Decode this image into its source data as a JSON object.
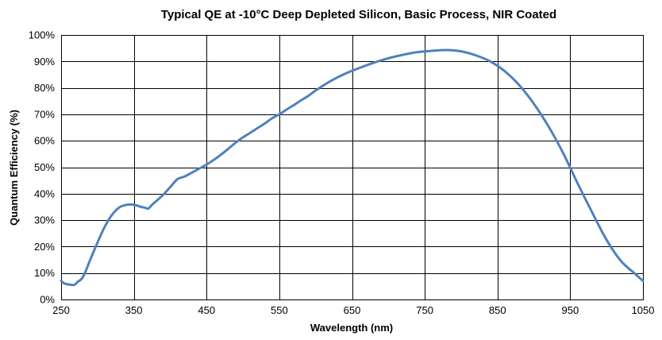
{
  "chart_data": {
    "type": "line",
    "title": "Typical QE at -10°C Deep Depleted Silicon, Basic Process, NIR Coated",
    "xlabel": "Wavelength (nm)",
    "ylabel": "Quantum Efficiency (%)",
    "xlim": [
      250,
      1050
    ],
    "ylim": [
      0,
      100
    ],
    "grid": true,
    "legend": "none",
    "x_ticks": [
      250,
      350,
      450,
      550,
      650,
      750,
      850,
      950,
      1050
    ],
    "x_tick_labels": [
      "250",
      "350",
      "450",
      "550",
      "650",
      "750",
      "850",
      "950",
      "1050"
    ],
    "y_ticks": [
      0,
      10,
      20,
      30,
      40,
      50,
      60,
      70,
      80,
      90,
      100
    ],
    "y_tick_labels": [
      "0%",
      "10%",
      "20%",
      "30%",
      "40%",
      "50%",
      "60%",
      "70%",
      "80%",
      "90%",
      "100%"
    ],
    "series": [
      {
        "name": "QE",
        "color": "#4f81bd",
        "x": [
          250,
          255,
          260,
          268,
          272,
          280,
          290,
          300,
          310,
          320,
          330,
          340,
          350,
          360,
          365,
          370,
          375,
          380,
          390,
          400,
          410,
          420,
          430,
          440,
          450,
          460,
          470,
          480,
          490,
          500,
          510,
          520,
          530,
          540,
          550,
          560,
          570,
          580,
          590,
          600,
          620,
          640,
          660,
          680,
          700,
          720,
          740,
          760,
          780,
          800,
          820,
          840,
          860,
          880,
          900,
          920,
          940,
          960,
          980,
          1000,
          1020,
          1040,
          1050
        ],
        "y": [
          7,
          6,
          5.7,
          5.5,
          6.5,
          8.5,
          15,
          21.5,
          27.5,
          32,
          34.8,
          35.8,
          35.8,
          35,
          34.7,
          34.4,
          35.8,
          37,
          39.5,
          42.5,
          45.5,
          46.5,
          48,
          49.5,
          51,
          52.8,
          54.8,
          57,
          59.3,
          61.3,
          63,
          64.8,
          66.5,
          68.5,
          70,
          71.8,
          73.5,
          75.3,
          77,
          79,
          82.5,
          85.3,
          87.5,
          89.5,
          91.2,
          92.5,
          93.5,
          94,
          94.3,
          93.8,
          92.3,
          90,
          86.3,
          81,
          74,
          65.5,
          55.5,
          44,
          33,
          22.5,
          14.5,
          9.5,
          7
        ]
      }
    ]
  }
}
